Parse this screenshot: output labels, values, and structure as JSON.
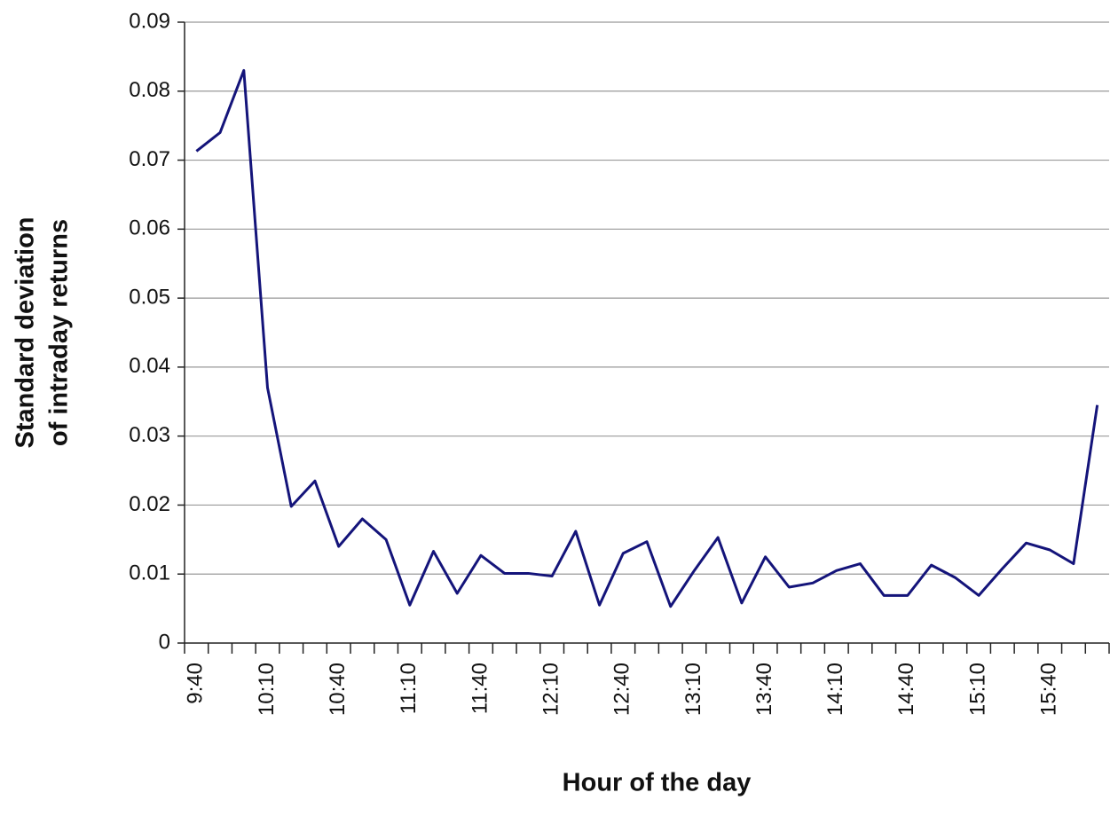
{
  "chart_data": {
    "type": "line",
    "xlabel": "Hour of the day",
    "ylabel": [
      "Standard deviation",
      "of intraday returns"
    ],
    "categories": [
      "9:40",
      null,
      null,
      "10:10",
      null,
      null,
      "10:40",
      null,
      null,
      "11:10",
      null,
      null,
      "11:40",
      null,
      null,
      "12:10",
      null,
      null,
      "12:40",
      null,
      null,
      "13:10",
      null,
      null,
      "13:40",
      null,
      null,
      "14:10",
      null,
      null,
      "14:40",
      null,
      null,
      "15:10",
      null,
      null,
      "15:40",
      null,
      null
    ],
    "values": [
      0.0713,
      0.074,
      0.083,
      0.037,
      0.0198,
      0.0235,
      0.014,
      0.018,
      0.015,
      0.0055,
      0.0133,
      0.0072,
      0.0127,
      0.0101,
      0.0101,
      0.0097,
      0.0162,
      0.0055,
      0.013,
      0.0147,
      0.0053,
      0.0105,
      0.0153,
      0.0058,
      0.0125,
      0.0081,
      0.0087,
      0.0105,
      0.0115,
      0.0069,
      0.0069,
      0.0113,
      0.0095,
      0.0069,
      0.0108,
      0.0145,
      0.0135,
      0.0115,
      0.0345
    ],
    "color": "#14147a",
    "ylim": [
      0,
      0.09
    ],
    "yticks": [
      0,
      0.01,
      0.02,
      0.03,
      0.04,
      0.05,
      0.06,
      0.07,
      0.08,
      0.09
    ],
    "grid": true
  }
}
